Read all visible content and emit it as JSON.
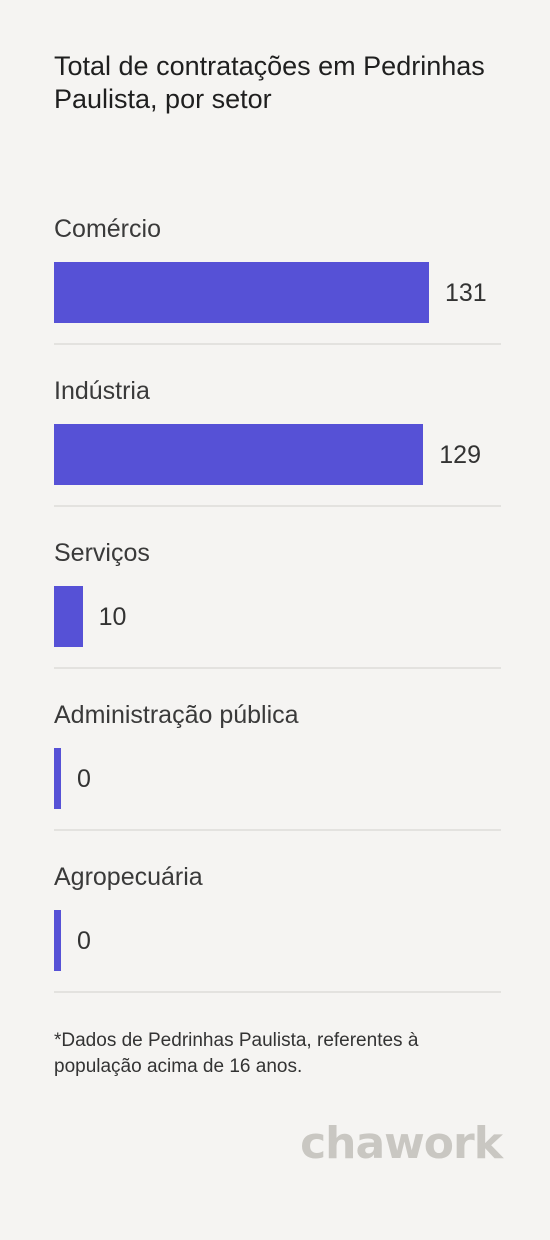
{
  "chart_data": {
    "type": "bar",
    "orientation": "horizontal",
    "title": "Total de contratações em Pedrinhas Paulista, por setor",
    "categories": [
      "Comércio",
      "Indústria",
      "Serviços",
      "Administração pública",
      "Agropecuária"
    ],
    "values": [
      131,
      129,
      10,
      0,
      0
    ],
    "value_labels": [
      "131",
      "129",
      "10",
      "0",
      "0"
    ],
    "bar_color": "#5651d6",
    "grid": false,
    "legend": "none"
  },
  "footnote": "*Dados de Pedrinhas Paulista, referentes à população acima de 16 anos.",
  "logo_text": "chawork"
}
